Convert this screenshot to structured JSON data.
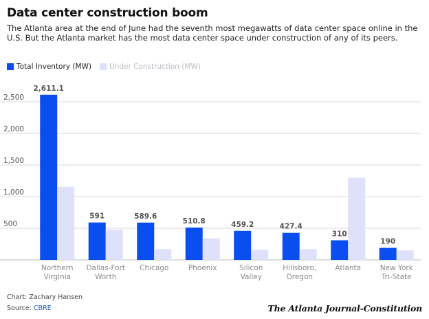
{
  "header": {
    "title": "Data center construction boom",
    "subtitle": "The Atlanta area at the end of June had the seventh most megawatts of data center space online in the U.S. But the Atlanta market has the most data center space under construction of any of its peers."
  },
  "footer": {
    "credit": "Chart: Zachary Hansen",
    "source_label": "Source:",
    "source_name": "CBRE",
    "logo": "The Atlanta Journal-Constitution"
  },
  "colors": {
    "primary": "#0a4ef0",
    "secondary": "#dfe1fb",
    "grid": "#d9d9d9",
    "tick": "#555555",
    "category": "#8a8a8a",
    "value_label": "#555555"
  },
  "chart_data": {
    "type": "bar",
    "title": "Data center construction boom",
    "xlabel": "",
    "ylabel": "",
    "categories": [
      [
        "Northern",
        "Virginia"
      ],
      [
        "Dallas-Fort",
        "Worth"
      ],
      [
        "Chicago"
      ],
      [
        "Phoenix"
      ],
      [
        "Silicon",
        "Valley"
      ],
      [
        "Hillsboro,",
        "Oregon"
      ],
      [
        "Atlanta"
      ],
      [
        "New York",
        "Tri-State"
      ]
    ],
    "series": [
      {
        "name": "Total Inventory (MW)",
        "values": [
          2611.1,
          591,
          589.6,
          510.8,
          459.2,
          427.4,
          310,
          190
        ],
        "labels": [
          "2,611.1",
          "591",
          "589.6",
          "510.8",
          "459.2",
          "427.4",
          "310",
          "190"
        ]
      },
      {
        "name": "Under Construction (MW)",
        "values": [
          1155,
          480,
          170,
          340,
          160,
          170,
          1300,
          150
        ]
      }
    ],
    "ylim": [
      0,
      2750
    ],
    "yticks": [
      500,
      1000,
      1500,
      2000,
      2500
    ],
    "ytick_labels": [
      "500",
      "1,000",
      "1,500",
      "2,000",
      "2,500"
    ],
    "grid": true,
    "legend": "top-left"
  }
}
